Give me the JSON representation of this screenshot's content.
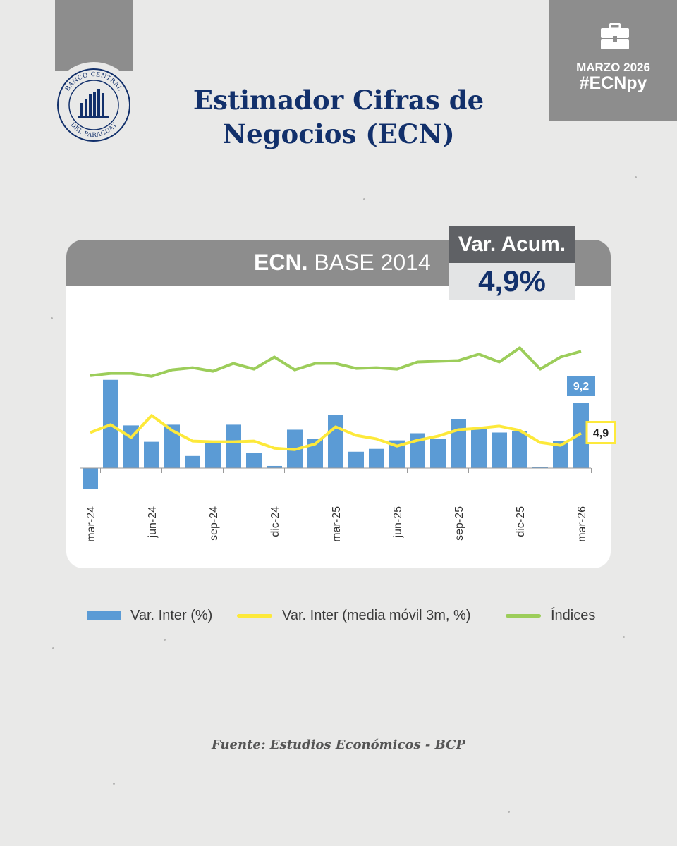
{
  "header": {
    "title_line1": "Estimador Cifras de",
    "title_line2": "Negocios (ECN)",
    "logo_text_top": "BANCO CENTRAL",
    "logo_text_bottom": "DEL PARAGUAY"
  },
  "badge": {
    "icon": "briefcase-icon",
    "month": "MARZO 2026",
    "hashtag": "#ECNpy"
  },
  "card": {
    "title_bold": "ECN.",
    "title_rest": " BASE 2014",
    "acc_label": "Var. Acum.",
    "acc_value": "4,9%"
  },
  "legend": {
    "bars": "Var. Inter (%)",
    "moving_avg": "Var. Inter (media móvil 3m, %)",
    "index": "Índices"
  },
  "source": "Fuente: Estudios Económicos - BCP",
  "colors": {
    "bar": "#5b9bd5",
    "moving_avg": "#fde93a",
    "index": "#9ccd5a",
    "title": "#12306b",
    "badge_grey": "#8d8d8d"
  },
  "chart_data": {
    "type": "bar",
    "ylim": [
      -3,
      16
    ],
    "grid": false,
    "legend_position": "bottom",
    "tick_labels": [
      "mar-24",
      "jun-24",
      "sep-24",
      "dic-24",
      "mar-25",
      "jun-25",
      "sep-25",
      "dic-25",
      "mar-26"
    ],
    "tick_every": 3,
    "series": [
      {
        "name": "Var. Inter (%)",
        "type": "bar",
        "values": [
          -2.9,
          12.4,
          6.0,
          3.7,
          6.1,
          1.7,
          3.7,
          6.1,
          2.1,
          0.3,
          5.4,
          4.1,
          7.5,
          2.3,
          2.7,
          3.9,
          4.9,
          4.1,
          6.9,
          5.5,
          5.0,
          5.2,
          0.1,
          3.8,
          9.2
        ],
        "last_label": "9,2"
      },
      {
        "name": "Var. Inter (media móvil 3m, %)",
        "type": "line",
        "values": [
          5.0,
          6.1,
          4.3,
          7.4,
          5.3,
          3.8,
          3.7,
          3.7,
          3.8,
          2.8,
          2.6,
          3.4,
          5.8,
          4.6,
          4.1,
          3.1,
          3.9,
          4.5,
          5.4,
          5.6,
          5.9,
          5.3,
          3.6,
          3.2,
          4.9
        ],
        "last_label": "4,9"
      },
      {
        "name": "Índices",
        "type": "line",
        "values": [
          13.0,
          13.3,
          13.3,
          12.9,
          13.8,
          14.1,
          13.6,
          14.7,
          13.9,
          15.6,
          13.8,
          14.7,
          14.7,
          14.0,
          14.1,
          13.9,
          14.9,
          15.0,
          15.1,
          16.0,
          14.9,
          16.9,
          13.9,
          15.6,
          16.4
        ]
      }
    ]
  }
}
